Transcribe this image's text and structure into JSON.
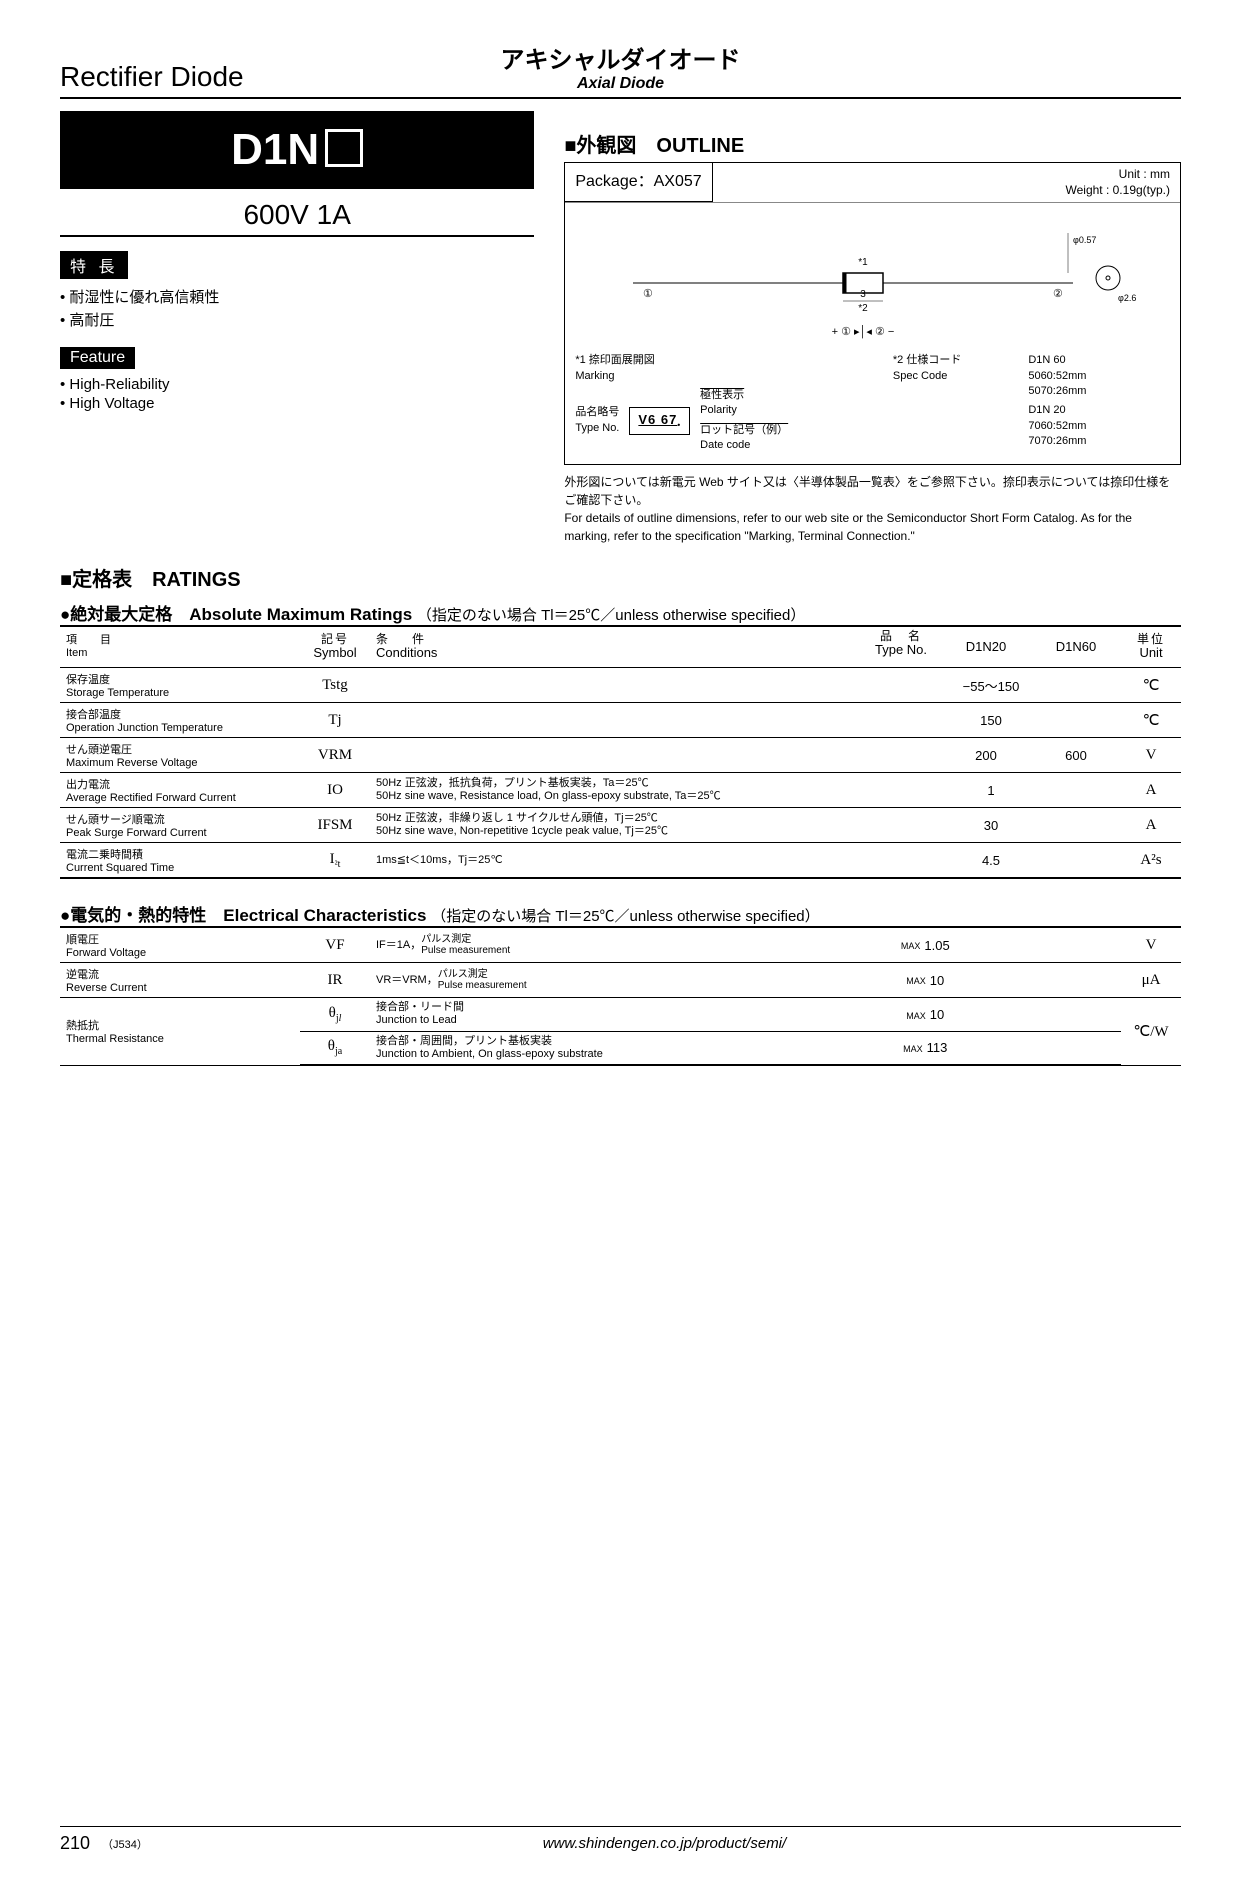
{
  "header": {
    "left": "Rectifier Diode",
    "center_jp": "アキシャルダイオード",
    "center_en": "Axial Diode"
  },
  "part": {
    "number_prefix": "D1N",
    "rating": "600V  1A"
  },
  "features_jp": {
    "badge": "特 長",
    "items": [
      "耐湿性に優れ高信頼性",
      "高耐圧"
    ]
  },
  "features_en": {
    "badge": "Feature",
    "items": [
      "High-Reliability",
      "High Voltage"
    ]
  },
  "outline": {
    "title": "■外観図　OUTLINE",
    "package": "Package：AX057",
    "unit": "Unit : mm",
    "weight": "Weight : 0.19g(typ.)",
    "marking_label_jp": "*1 捺印面展開図",
    "marking_label_en": "Marking",
    "polarity_jp": "極性表示",
    "polarity_en": "Polarity",
    "type_jp": "品名略号",
    "type_en": "Type No.",
    "date_jp": "ロット記号（例）",
    "date_en": "Date code",
    "spec_jp": "*2 仕様コード",
    "spec_en": "Spec Code",
    "marking_text": "V6  67",
    "spec_lines": [
      "D1N 60",
      "5060:52mm",
      "5070:26mm",
      "D1N 20",
      "7060:52mm",
      "7070:26mm"
    ],
    "dim_phi1": "φ0.57",
    "dim_phi2": "φ2.6",
    "dim_body": "3",
    "mark1": "①",
    "mark2": "②",
    "star1": "*1",
    "star2": "*2",
    "polarity_sym": "+ ① ▸│◂ ② −",
    "note_jp": "外形図については新電元 Web サイト又は〈半導体製品一覧表〉をご参照下さい。捺印表示については捺印仕様をご確認下さい。",
    "note_en": "For details of outline dimensions, refer to our web site or the Semiconductor Short Form Catalog.  As for the marking, refer to the specification \"Marking, Terminal Connection.\""
  },
  "ratings_section": {
    "title": "■定格表　RATINGS",
    "abs_title": "●絶対最大定格　Absolute Maximum Ratings",
    "abs_cond": "（指定のない場合 Tl＝25℃／unless otherwise specified）",
    "elec_title": "●電気的・熱的特性　Electrical Characteristics",
    "elec_cond": "（指定のない場合 Tl＝25℃／unless otherwise specified）"
  },
  "abs_headers": {
    "item_jp": "項　目",
    "item_en": "Item",
    "sym_jp": "記号",
    "sym_en": "Symbol",
    "cond_jp": "条　件",
    "cond_en": "Conditions",
    "type_jp": "品　名",
    "type_en": "Type No.",
    "type1": "D1N20",
    "type2": "D1N60",
    "unit_jp": "単位",
    "unit_en": "Unit"
  },
  "abs_rows": [
    {
      "jp": "保存温度",
      "en": "Storage Temperature",
      "sym": "Tstg",
      "cond_jp": "",
      "cond_en": "",
      "v1": "−55～150",
      "v2": "",
      "merge": true,
      "unit": "℃"
    },
    {
      "jp": "接合部温度",
      "en": "Operation Junction Temperature",
      "sym": "Tj",
      "cond_jp": "",
      "cond_en": "",
      "v1": "150",
      "v2": "",
      "merge": true,
      "unit": "℃"
    },
    {
      "jp": "せん頭逆電圧",
      "en": "Maximum Reverse Voltage",
      "sym": "VRM",
      "cond_jp": "",
      "cond_en": "",
      "v1": "200",
      "v2": "600",
      "merge": false,
      "unit": "V"
    },
    {
      "jp": "出力電流",
      "en": "Average Rectified Forward Current",
      "sym": "IO",
      "cond_jp": "50Hz 正弦波，抵抗負荷，プリント基板実装，Ta＝25℃",
      "cond_en": "50Hz sine wave, Resistance load, On glass-epoxy substrate,  Ta＝25℃",
      "v1": "1",
      "v2": "",
      "merge": true,
      "unit": "A"
    },
    {
      "jp": "せん頭サージ順電流",
      "en": "Peak Surge Forward Current",
      "sym": "IFSM",
      "cond_jp": "50Hz 正弦波，非繰り返し 1 サイクルせん頭値，Tj＝25℃",
      "cond_en": "50Hz sine wave, Non-repetitive 1cycle peak value,  Tj＝25℃",
      "v1": "30",
      "v2": "",
      "merge": true,
      "unit": "A"
    },
    {
      "jp": "電流二乗時間積",
      "en": "Current  Squared Time",
      "sym": "I²t",
      "cond_jp": "1ms≦t＜10ms，Tj＝25℃",
      "cond_en": "",
      "v1": "4.5",
      "v2": "",
      "merge": true,
      "unit": "A²s"
    }
  ],
  "elec_rows": [
    {
      "jp": "順電圧",
      "en": "Forward Voltage",
      "sym": "VF",
      "cond_jp": "IF＝1A，",
      "cond_sub_jp": "パルス測定",
      "cond_sub_en": "Pulse measurement",
      "val": "1.05",
      "max": true,
      "unit": "V",
      "rowspan": 1
    },
    {
      "jp": "逆電流",
      "en": "Reverse Current",
      "sym": "IR",
      "cond_jp": "VR＝VRM，",
      "cond_sub_jp": "パルス測定",
      "cond_sub_en": "Pulse measurement",
      "val": "10",
      "max": true,
      "unit": "μA",
      "rowspan": 1
    }
  ],
  "thermal": {
    "jp": "熱抵抗",
    "en": "Thermal Resistance",
    "r1": {
      "sym": "θjl",
      "cond_jp": "接合部・リード間",
      "cond_en": "Junction to Lead",
      "val": "10",
      "max": true
    },
    "r2": {
      "sym": "θja",
      "cond_jp": "接合部・周囲間，プリント基板実装",
      "cond_en": "Junction to Ambient, On glass-epoxy substrate",
      "val": "113",
      "max": true
    },
    "unit": "℃/W"
  },
  "footer": {
    "page": "210",
    "code": "（J534）",
    "url": "www.shindengen.co.jp/product/semi/"
  }
}
